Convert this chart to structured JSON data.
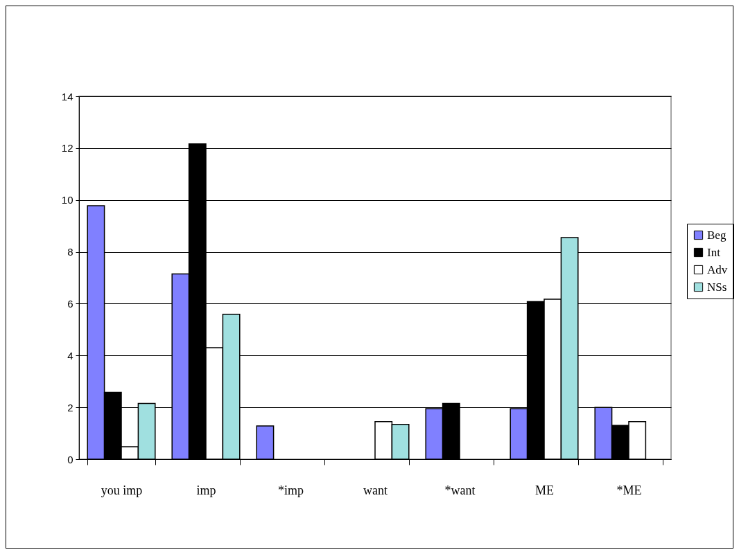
{
  "chart_data": {
    "type": "bar",
    "categories": [
      "you imp",
      "imp",
      "*imp",
      "want",
      "*want",
      "ME",
      "*ME"
    ],
    "series": [
      {
        "name": "Beg",
        "color": "#8080ff",
        "values": [
          9.78,
          7.15,
          1.28,
          0,
          1.95,
          1.95,
          2.0
        ]
      },
      {
        "name": "Int",
        "color": "#000000",
        "values": [
          2.58,
          12.16,
          0,
          0,
          2.15,
          6.08,
          1.3
        ]
      },
      {
        "name": "Adv",
        "color": "#ffffff",
        "values": [
          0.48,
          4.3,
          0,
          1.45,
          0,
          6.17,
          1.45
        ]
      },
      {
        "name": "NSs",
        "color": "#a0e0e0",
        "values": [
          2.15,
          5.59,
          0,
          1.34,
          0,
          8.55,
          0
        ]
      }
    ],
    "ylim": [
      0,
      14
    ],
    "yticks": [
      0,
      2,
      4,
      6,
      8,
      10,
      12,
      14
    ],
    "grid": "y",
    "legend": "right"
  }
}
